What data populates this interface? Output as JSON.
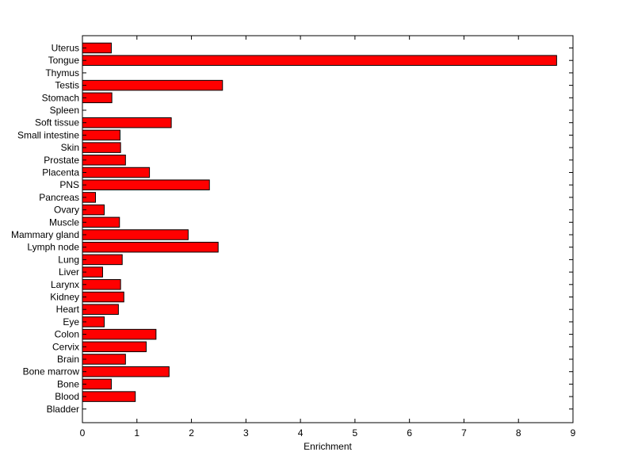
{
  "chart_data": {
    "type": "bar",
    "orientation": "horizontal",
    "title": "",
    "xlabel": "Enrichment",
    "ylabel": "",
    "xlim": [
      0,
      9
    ],
    "xticks": [
      0,
      1,
      2,
      3,
      4,
      5,
      6,
      7,
      8,
      9
    ],
    "grid": false,
    "bar_color": "#ff0000",
    "bar_edge_color": "#000000",
    "categories": [
      "Uterus",
      "Tongue",
      "Thymus",
      "Testis",
      "Stomach",
      "Spleen",
      "Soft tissue",
      "Small intestine",
      "Skin",
      "Prostate",
      "Placenta",
      "PNS",
      "Pancreas",
      "Ovary",
      "Muscle",
      "Mammary gland",
      "Lymph node",
      "Lung",
      "Liver",
      "Larynx",
      "Kidney",
      "Heart",
      "Eye",
      "Colon",
      "Cervix",
      "Brain",
      "Bone marrow",
      "Bone",
      "Blood",
      "Bladder"
    ],
    "values": [
      0.53,
      8.7,
      0,
      2.57,
      0.54,
      0,
      1.63,
      0.69,
      0.7,
      0.79,
      1.23,
      2.33,
      0.24,
      0.4,
      0.68,
      1.94,
      2.49,
      0.73,
      0.37,
      0.7,
      0.76,
      0.66,
      0.4,
      1.35,
      1.17,
      0.79,
      1.59,
      0.53,
      0.97,
      0
    ]
  }
}
